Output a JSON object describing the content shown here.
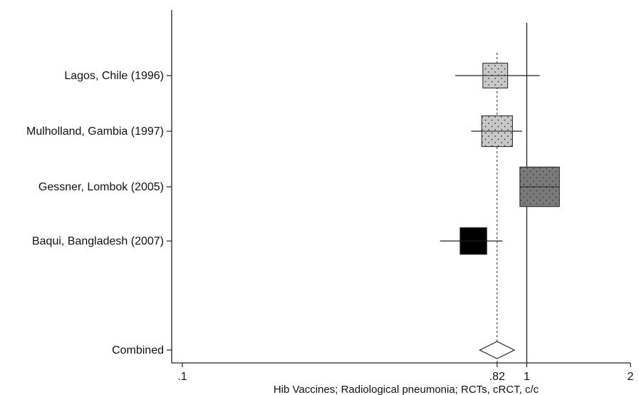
{
  "chart_data": {
    "type": "forest",
    "xlabel": "Hib Vaccines; Radiological pneumonia; RCTs, cRCT, c/c",
    "x_scale": "log",
    "xlim": [
      0.1,
      2
    ],
    "x_ticks": [
      {
        "value": 0.1,
        "label": ".1"
      },
      {
        "value": 0.82,
        "label": ".82"
      },
      {
        "value": 1,
        "label": "1"
      },
      {
        "value": 2,
        "label": "2"
      }
    ],
    "null_line": 1,
    "pooled_line": 0.82,
    "studies": [
      {
        "label": "Lagos, Chile (1996)",
        "estimate": 0.81,
        "ci_low": 0.62,
        "ci_high": 1.09,
        "weight": 0.65,
        "fill": "#c8c8c8"
      },
      {
        "label": "Mulholland, Gambia (1997)",
        "estimate": 0.82,
        "ci_low": 0.69,
        "ci_high": 0.97,
        "weight": 1.0,
        "fill": "#c8c8c8"
      },
      {
        "label": "Gessner, Lombok (2005)",
        "estimate": 1.09,
        "ci_low": 0.97,
        "ci_high": 1.23,
        "weight": 1.65,
        "fill": "#7a7a7a"
      },
      {
        "label": "Baqui, Bangladesh (2007)",
        "estimate": 0.7,
        "ci_low": 0.56,
        "ci_high": 0.85,
        "weight": 0.75,
        "fill": "#000000"
      }
    ],
    "combined": {
      "label": "Combined",
      "estimate": 0.82,
      "ci_low": 0.73,
      "ci_high": 0.92
    }
  }
}
